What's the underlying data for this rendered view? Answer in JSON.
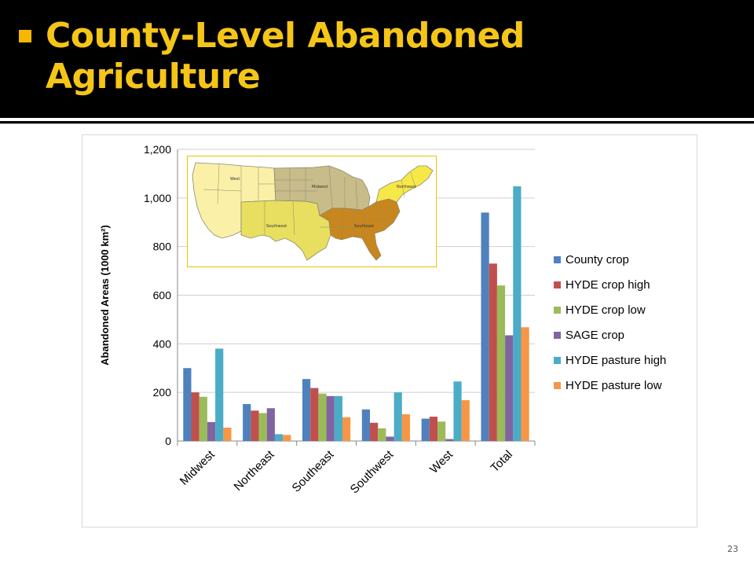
{
  "slide": {
    "title": "County-Level Abandoned Agriculture",
    "page_number": "23"
  },
  "map": {
    "region_labels": [
      "West",
      "Midwest",
      "Northeast",
      "Southeast",
      "Southwest"
    ],
    "colors": {
      "West": "#fbf0a8",
      "Midwest": "#c8bc8a",
      "Northeast": "#f7e84a",
      "Southeast": "#c8861e",
      "Southwest": "#e8df60"
    }
  },
  "chart_data": {
    "type": "bar",
    "categories": [
      "Midwest",
      "Northeast",
      "Southeast",
      "Southwest",
      "West",
      "Total"
    ],
    "ylabel": "Abandoned Areas (1000 km²)",
    "ylim": [
      0,
      1200
    ],
    "yticks": [
      0,
      200,
      400,
      600,
      800,
      1000,
      1200
    ],
    "ytick_labels": [
      "0",
      "200",
      "400",
      "600",
      "800",
      "1,000",
      "1,200"
    ],
    "grid": "horizontal",
    "legend_position": "right",
    "series": [
      {
        "name": "County crop",
        "color": "#4f81bd",
        "values": [
          300,
          152,
          255,
          130,
          92,
          940
        ]
      },
      {
        "name": "HYDE crop high",
        "color": "#c0504d",
        "values": [
          200,
          125,
          218,
          75,
          100,
          730
        ]
      },
      {
        "name": "HYDE crop low",
        "color": "#9bbb59",
        "values": [
          182,
          115,
          195,
          52,
          80,
          640
        ]
      },
      {
        "name": "SAGE crop",
        "color": "#8064a2",
        "values": [
          78,
          135,
          185,
          18,
          8,
          435
        ]
      },
      {
        "name": "HYDE pasture high",
        "color": "#4bacc6",
        "values": [
          380,
          28,
          185,
          200,
          245,
          1048
        ]
      },
      {
        "name": "HYDE pasture low",
        "color": "#f79646",
        "values": [
          55,
          25,
          98,
          110,
          168,
          468
        ]
      }
    ]
  }
}
